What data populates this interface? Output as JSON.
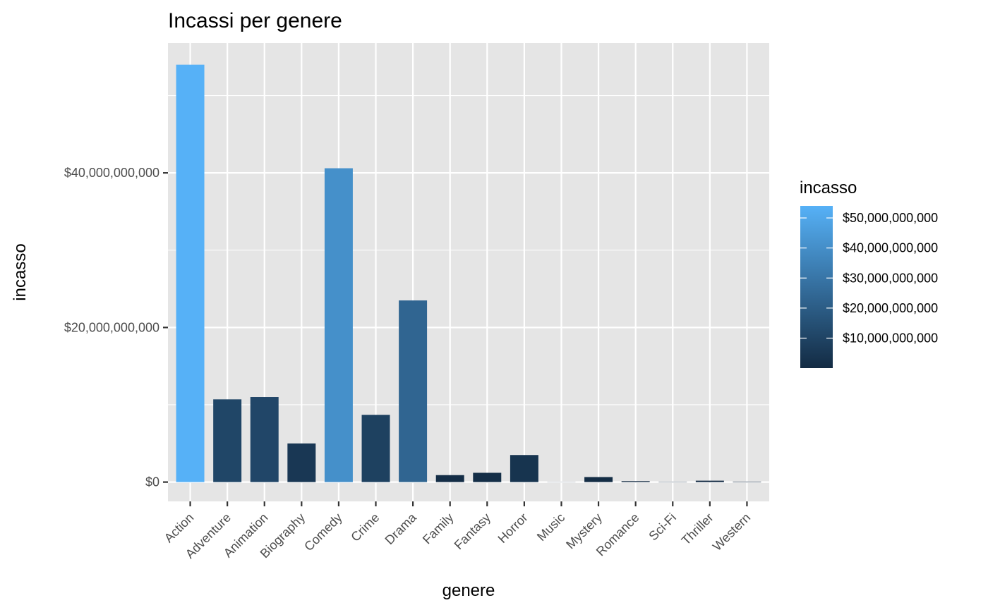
{
  "chart_data": {
    "type": "bar",
    "title": "Incassi per genere",
    "xlabel": "genere",
    "ylabel": "incasso",
    "categories": [
      "Action",
      "Adventure",
      "Animation",
      "Biography",
      "Comedy",
      "Crime",
      "Drama",
      "Family",
      "Fantasy",
      "Horror",
      "Music",
      "Mystery",
      "Romance",
      "Sci-Fi",
      "Thriller",
      "Western"
    ],
    "values": [
      54000000000,
      10700000000,
      11000000000,
      5000000000,
      40600000000,
      8700000000,
      23500000000,
      900000000,
      1200000000,
      3500000000,
      20000000,
      650000000,
      120000000,
      40000000,
      180000000,
      60000000
    ],
    "ylim": [
      -2500000000,
      56800000000
    ],
    "y_ticks": [
      0,
      20000000000,
      40000000000
    ],
    "y_tick_labels": [
      "$0",
      "$20,000,000,000",
      "$40,000,000,000"
    ],
    "grid": true,
    "legend": {
      "title": "incasso",
      "position": "right",
      "range": [
        20000000,
        54000000000
      ],
      "ticks": [
        10000000000,
        20000000000,
        30000000000,
        40000000000,
        50000000000
      ],
      "tick_labels": [
        "$10,000,000,000",
        "$20,000,000,000",
        "$30,000,000,000",
        "$40,000,000,000",
        "$50,000,000,000"
      ]
    },
    "colors": {
      "low": "#132B43",
      "high": "#56B1F7",
      "panel": "#E5E5E5",
      "grid": "#FFFFFF"
    }
  }
}
